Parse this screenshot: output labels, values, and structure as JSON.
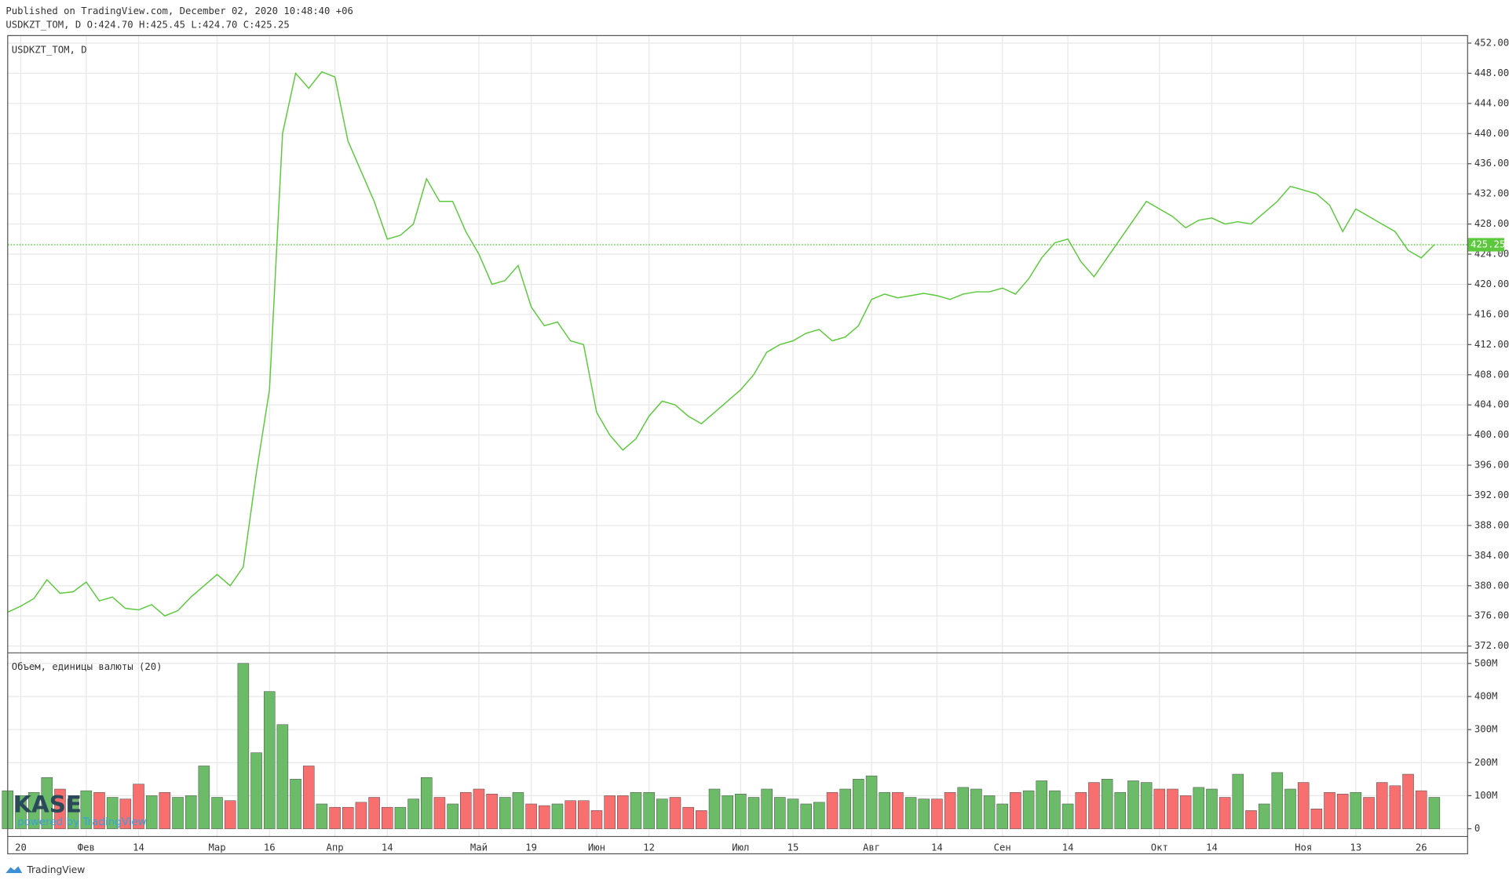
{
  "header": {
    "published": "Published on TradingView.com, December 02, 2020 10:48:40 +06",
    "symbol_info": "USDKZT_TOM, D O:424.70 H:425.45 L:424.70 C:425.25"
  },
  "watermark": {
    "logo": "KASE",
    "subtitle": "powered by TradingView"
  },
  "footer": {
    "brand": "TradingView"
  },
  "chart_data": [
    {
      "type": "line",
      "series": [
        {
          "name": "USDKZT_TOM, D",
          "color": "#5cc93c",
          "values": [
            376.5,
            377.3,
            378.3,
            380.8,
            379.0,
            379.2,
            380.5,
            378.0,
            378.5,
            377.0,
            376.8,
            377.5,
            376.0,
            376.7,
            378.5,
            380.0,
            381.5,
            380.0,
            382.5,
            395.0,
            406.0,
            440.0,
            448.0,
            446.0,
            448.2,
            447.5,
            439.0,
            435.0,
            431.0,
            426.0,
            426.5,
            428.0,
            434.0,
            431.0,
            431.0,
            427.0,
            424.0,
            420.0,
            420.5,
            422.5,
            417.0,
            414.5,
            415.0,
            412.5,
            412.0,
            403.0,
            400.0,
            398.0,
            399.5,
            402.5,
            404.5,
            404.0,
            402.5,
            401.5,
            403.0,
            404.5,
            406.0,
            408.0,
            411.0,
            412.0,
            412.5,
            413.5,
            414.0,
            412.5,
            413.0,
            414.5,
            418.0,
            418.7,
            418.2,
            418.5,
            418.8,
            418.5,
            418.0,
            418.7,
            419.0,
            419.0,
            419.5,
            418.7,
            420.7,
            423.5,
            425.5,
            426.0,
            423.0,
            421.0,
            423.5,
            426.0,
            428.5,
            431.0,
            430.0,
            429.0,
            427.5,
            428.5,
            428.8,
            428.0,
            428.3,
            428.0,
            429.5,
            431.0,
            433.0,
            432.5,
            432.0,
            430.5,
            427.0,
            430.0,
            429.0,
            428.0,
            427.0,
            424.5,
            423.5,
            425.25
          ]
        }
      ],
      "ylim": [
        371.1,
        453.0
      ],
      "yticks": [
        {
          "value": 372,
          "label": "372.00"
        },
        {
          "value": 376,
          "label": "376.00"
        },
        {
          "value": 380,
          "label": "380.00"
        },
        {
          "value": 384,
          "label": "384.00"
        },
        {
          "value": 388,
          "label": "388.00"
        },
        {
          "value": 392,
          "label": "392.00"
        },
        {
          "value": 396,
          "label": "396.00"
        },
        {
          "value": 400,
          "label": "400.00"
        },
        {
          "value": 404,
          "label": "404.00"
        },
        {
          "value": 408,
          "label": "408.00"
        },
        {
          "value": 412,
          "label": "412.00"
        },
        {
          "value": 416,
          "label": "416.00"
        },
        {
          "value": 420,
          "label": "420.00"
        },
        {
          "value": 424,
          "label": "424.00"
        },
        {
          "value": 428,
          "label": "428.00"
        },
        {
          "value": 432,
          "label": "432.00"
        },
        {
          "value": 436,
          "label": "436.00"
        },
        {
          "value": 440,
          "label": "440.00"
        },
        {
          "value": 444,
          "label": "444.00"
        },
        {
          "value": 448,
          "label": "448.00"
        },
        {
          "value": 452,
          "label": "452.00"
        }
      ],
      "last_price": {
        "value": 425.25,
        "label": "425.25"
      },
      "grid": true
    },
    {
      "type": "bar",
      "title": "Объем, единицы валюты (20)",
      "up_color": "#6cbb68",
      "down_color": "#f76f6f",
      "categories": [
        null,
        "20",
        null,
        null,
        null,
        null,
        "Фев",
        null,
        null,
        null,
        "14",
        null,
        null,
        null,
        null,
        null,
        "Мар",
        null,
        null,
        null,
        "16",
        null,
        null,
        null,
        null,
        "Апр",
        null,
        null,
        null,
        "14",
        null,
        null,
        null,
        null,
        null,
        null,
        "Май",
        null,
        null,
        null,
        "19",
        null,
        null,
        null,
        null,
        "Июн",
        null,
        null,
        null,
        "12",
        null,
        null,
        null,
        null,
        null,
        null,
        "Июл",
        null,
        null,
        null,
        "15",
        null,
        null,
        null,
        null,
        null,
        "Авг",
        null,
        null,
        null,
        null,
        "14",
        null,
        null,
        null,
        null,
        "Сен",
        null,
        null,
        null,
        null,
        "14",
        null,
        null,
        null,
        null,
        null,
        null,
        "Окт",
        null,
        null,
        null,
        "14",
        null,
        null,
        null,
        null,
        null,
        null,
        "Ноя",
        null,
        null,
        null,
        "13",
        null,
        null,
        null,
        null,
        "26",
        null
      ],
      "values": [
        115000000,
        100000000,
        110000000,
        155000000,
        120000000,
        90000000,
        115000000,
        110000000,
        95000000,
        90000000,
        135000000,
        100000000,
        110000000,
        95000000,
        100000000,
        190000000,
        95000000,
        85000000,
        500000000,
        230000000,
        415000000,
        315000000,
        150000000,
        190000000,
        75000000,
        65000000,
        65000000,
        80000000,
        95000000,
        65000000,
        65000000,
        90000000,
        155000000,
        95000000,
        75000000,
        110000000,
        120000000,
        105000000,
        95000000,
        110000000,
        75000000,
        70000000,
        75000000,
        85000000,
        85000000,
        55000000,
        100000000,
        100000000,
        110000000,
        110000000,
        90000000,
        95000000,
        65000000,
        55000000,
        120000000,
        100000000,
        105000000,
        95000000,
        120000000,
        95000000,
        90000000,
        75000000,
        80000000,
        110000000,
        120000000,
        150000000,
        160000000,
        110000000,
        110000000,
        95000000,
        90000000,
        90000000,
        110000000,
        125000000,
        120000000,
        100000000,
        75000000,
        110000000,
        115000000,
        145000000,
        115000000,
        75000000,
        110000000,
        140000000,
        150000000,
        110000000,
        145000000,
        140000000,
        120000000,
        120000000,
        100000000,
        125000000,
        120000000,
        95000000,
        165000000,
        55000000,
        75000000,
        170000000,
        120000000,
        140000000,
        60000000,
        110000000,
        105000000,
        110000000,
        95000000,
        140000000,
        130000000,
        165000000,
        115000000,
        95000000
      ],
      "ylim": [
        -23400000,
        532000000
      ],
      "yticks": [
        0,
        {
          "value": 100000000,
          "label": "100M"
        },
        {
          "value": 200000000,
          "label": "200M"
        },
        {
          "value": 300000000,
          "label": "300M"
        },
        {
          "value": 400000000,
          "label": "400M"
        },
        {
          "value": 500000000,
          "label": "500M"
        }
      ],
      "grid": true
    }
  ]
}
